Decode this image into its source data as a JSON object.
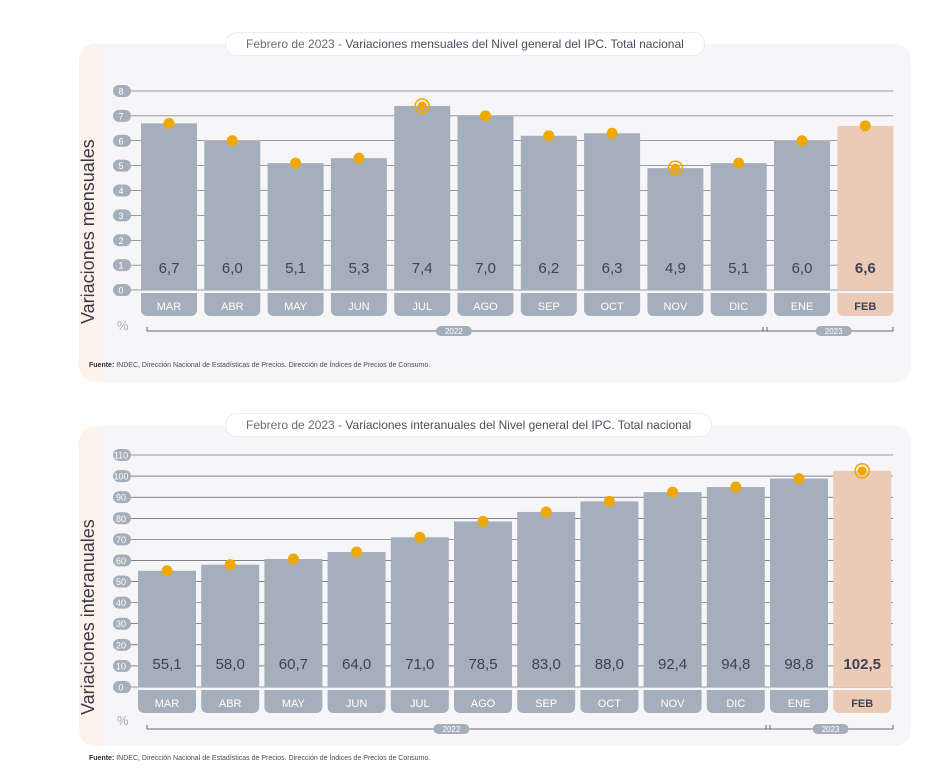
{
  "colors": {
    "bar": "#a5aebb",
    "highlight_bar": "#eccbb6",
    "dot": "#efa800",
    "axis_badge": "#a5aebb",
    "grid": "#3d3d4a",
    "value_text": "#3d4256",
    "highlight_value_text": "#3d4256"
  },
  "chart_data": [
    {
      "type": "bar",
      "title_date": "Febrero de 2023",
      "title_sep": " - ",
      "title": "Variaciones mensuales del Nivel general del IPC. Total nacional",
      "ylabel": "Variaciones mensuales",
      "unit": "%",
      "ylim": [
        0,
        8
      ],
      "yticks": [
        "0",
        "1",
        "2",
        "3",
        "4",
        "5",
        "6",
        "7",
        "8"
      ],
      "categories": [
        "MAR",
        "ABR",
        "MAY",
        "JUN",
        "JUL",
        "AGO",
        "SEP",
        "OCT",
        "NOV",
        "DIC",
        "ENE",
        "FEB"
      ],
      "values": [
        6.7,
        6.0,
        5.1,
        5.3,
        7.4,
        7.0,
        6.2,
        6.3,
        4.9,
        5.1,
        6.0,
        6.6
      ],
      "labels": [
        "6,7",
        "6,0",
        "5,1",
        "5,3",
        "7,4",
        "7,0",
        "6,2",
        "6,3",
        "4,9",
        "5,1",
        "6,0",
        "6,6"
      ],
      "highlight_index": 11,
      "ring_markers": [
        4,
        8
      ],
      "years": [
        {
          "label": "2022",
          "from": 0,
          "to": 9
        },
        {
          "label": "2023",
          "from": 10,
          "to": 11
        }
      ],
      "grid": true,
      "source_bold": "Fuente:",
      "source": " INDEC, Dirección Nacional de Estadísticas de Precios. Dirección de Índices de Precios de Consumo."
    },
    {
      "type": "bar",
      "title_date": "Febrero de 2023",
      "title_sep": " - ",
      "title": "Variaciones interanuales del Nivel general del IPC. Total nacional",
      "ylabel": "Variaciones interanuales",
      "unit": "%",
      "ylim": [
        0,
        110
      ],
      "yticks": [
        "0",
        "10",
        "20",
        "30",
        "40",
        "50",
        "60",
        "70",
        "80",
        "90",
        "100",
        "110"
      ],
      "categories": [
        "MAR",
        "ABR",
        "MAY",
        "JUN",
        "JUL",
        "AGO",
        "SEP",
        "OCT",
        "NOV",
        "DIC",
        "ENE",
        "FEB"
      ],
      "values": [
        55.1,
        58.0,
        60.7,
        64.0,
        71.0,
        78.5,
        83.0,
        88.0,
        92.4,
        94.8,
        98.8,
        102.5
      ],
      "labels": [
        "55,1",
        "58,0",
        "60,7",
        "64,0",
        "71,0",
        "78,5",
        "83,0",
        "88,0",
        "92,4",
        "94,8",
        "98,8",
        "102,5"
      ],
      "highlight_index": 11,
      "ring_markers": [
        11
      ],
      "years": [
        {
          "label": "2022",
          "from": 0,
          "to": 9
        },
        {
          "label": "2023",
          "from": 10,
          "to": 11
        }
      ],
      "grid": true,
      "source_bold": "Fuente:",
      "source": " INDEC, Dirección Nacional de Estadísticas de Precios. Dirección de Índices de Precios de Consumo."
    }
  ]
}
